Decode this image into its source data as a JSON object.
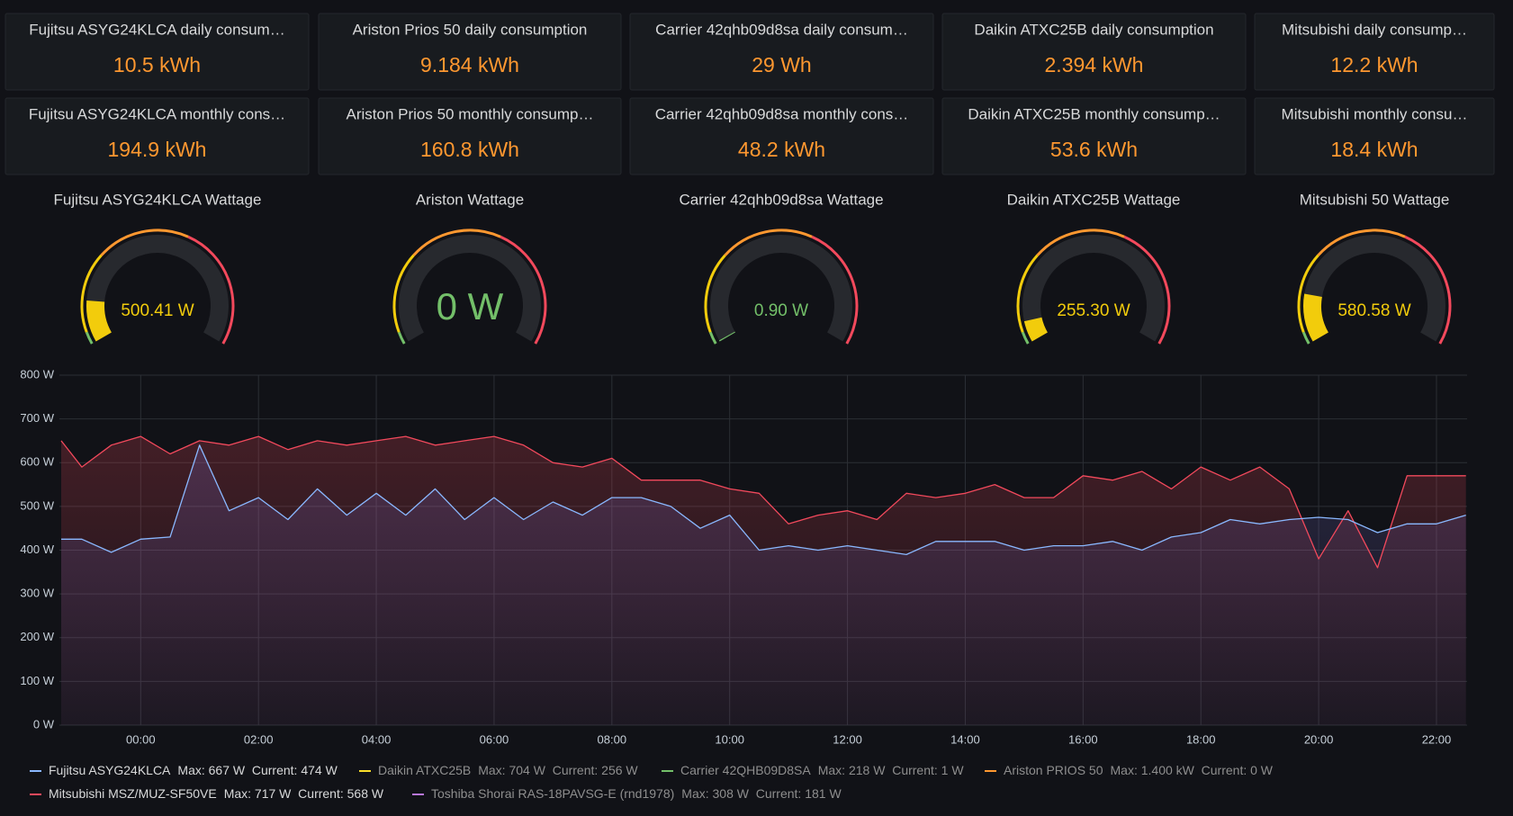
{
  "stats": [
    {
      "title": "Fujitsu ASYG24KLCA daily consum…",
      "value": "10.5 kWh"
    },
    {
      "title": "Ariston Prios 50 daily consumption",
      "value": "9.184 kWh"
    },
    {
      "title": "Carrier 42qhb09d8sa daily consum…",
      "value": "29 Wh"
    },
    {
      "title": "Daikin ATXC25B daily consumption",
      "value": "2.394 kWh"
    },
    {
      "title": "Mitsubishi daily consump…",
      "value": "12.2 kWh"
    },
    {
      "title": "Fujitsu ASYG24KLCA monthly cons…",
      "value": "194.9 kWh"
    },
    {
      "title": "Ariston Prios 50 monthly consump…",
      "value": "160.8 kWh"
    },
    {
      "title": "Carrier 42qhb09d8sa monthly cons…",
      "value": "48.2 kWh"
    },
    {
      "title": "Daikin ATXC25B monthly consump…",
      "value": "53.6 kWh"
    },
    {
      "title": "Mitsubishi monthly consu…",
      "value": "18.4 kWh"
    }
  ],
  "gauges": [
    {
      "title": "Fujitsu ASYG24KLCA Wattage",
      "value": 500.41,
      "value_label": "500.41 W",
      "range": [
        0,
        3500
      ],
      "color": "#f2cc0c"
    },
    {
      "title": "Ariston Wattage",
      "value": 0,
      "value_label": "0 W",
      "range": [
        0,
        3500
      ],
      "color": "#73bf69"
    },
    {
      "title": "Carrier 42qhb09d8sa Wattage",
      "value": 0.9,
      "value_label": "0.90 W",
      "range": [
        0,
        3500
      ],
      "color": "#73bf69"
    },
    {
      "title": "Daikin ATXC25B Wattage",
      "value": 255.3,
      "value_label": "255.30 W",
      "range": [
        0,
        3500
      ],
      "color": "#f2cc0c"
    },
    {
      "title": "Mitsubishi 50 Wattage",
      "value": 580.58,
      "value_label": "580.58 W",
      "range": [
        0,
        3500
      ],
      "color": "#f2cc0c"
    }
  ],
  "chart_data": {
    "type": "line",
    "x": [
      -1.35,
      -1,
      -0.5,
      0,
      0.5,
      1,
      1.5,
      2,
      2.5,
      3,
      3.5,
      4,
      4.5,
      5,
      5.5,
      6,
      6.5,
      7,
      7.5,
      8,
      8.5,
      9,
      9.5,
      10,
      10.5,
      11,
      11.5,
      12,
      12.5,
      13,
      13.5,
      14,
      14.5,
      15,
      15.5,
      16,
      16.5,
      17,
      17.5,
      18,
      18.5,
      19,
      19.5,
      20,
      20.5,
      21,
      21.5,
      22,
      22.5
    ],
    "xlim": [
      -1.38,
      22.52
    ],
    "xticks": [
      {
        "value": 0,
        "label": "00:00"
      },
      {
        "value": 2,
        "label": "02:00"
      },
      {
        "value": 4,
        "label": "04:00"
      },
      {
        "value": 6,
        "label": "06:00"
      },
      {
        "value": 8,
        "label": "08:00"
      },
      {
        "value": 10,
        "label": "10:00"
      },
      {
        "value": 12,
        "label": "12:00"
      },
      {
        "value": 14,
        "label": "14:00"
      },
      {
        "value": 16,
        "label": "16:00"
      },
      {
        "value": 18,
        "label": "18:00"
      },
      {
        "value": 20,
        "label": "20:00"
      },
      {
        "value": 22,
        "label": "22:00"
      }
    ],
    "ylim": [
      0,
      800
    ],
    "yticks": [
      {
        "value": 0,
        "label": "0 W"
      },
      {
        "value": 100,
        "label": "100 W"
      },
      {
        "value": 200,
        "label": "200 W"
      },
      {
        "value": 300,
        "label": "300 W"
      },
      {
        "value": 400,
        "label": "400 W"
      },
      {
        "value": 500,
        "label": "500 W"
      },
      {
        "value": 600,
        "label": "600 W"
      },
      {
        "value": 700,
        "label": "700 W"
      },
      {
        "value": 800,
        "label": "800 W"
      }
    ],
    "grid": true,
    "series": [
      {
        "name": "Fujitsu ASYG24KLCA",
        "stats": "Max: 667 W  Current: 474 W",
        "color": "#8ab8ff",
        "fill": "#7a6fd0",
        "hidden": false,
        "values": [
          425,
          425,
          395,
          425,
          430,
          640,
          490,
          520,
          470,
          540,
          480,
          530,
          480,
          540,
          470,
          520,
          470,
          510,
          480,
          520,
          520,
          500,
          450,
          480,
          400,
          410,
          400,
          410,
          400,
          390,
          420,
          420,
          420,
          400,
          410,
          410,
          420,
          400,
          430,
          440,
          470,
          460,
          470,
          475,
          470,
          440,
          460,
          460,
          480
        ]
      },
      {
        "name": "Daikin ATXC25B",
        "stats": "Max: 704 W  Current: 256 W",
        "color": "#fade2a",
        "hidden": true
      },
      {
        "name": "Carrier 42QHB09D8SA",
        "stats": "Max: 218 W  Current: 1 W",
        "color": "#73bf69",
        "hidden": true
      },
      {
        "name": "Ariston PRIOS 50",
        "stats": "Max: 1.400 kW  Current: 0 W",
        "color": "#ff9830",
        "hidden": true
      },
      {
        "name": "Mitsubishi MSZ/MUZ-SF50VE",
        "stats": "Max: 717 W  Current: 568 W",
        "color": "#f2495c",
        "fill": "#f2495c",
        "hidden": false,
        "values": [
          650,
          590,
          640,
          660,
          620,
          650,
          640,
          660,
          630,
          650,
          640,
          650,
          660,
          640,
          650,
          660,
          640,
          600,
          590,
          610,
          560,
          560,
          560,
          540,
          530,
          460,
          480,
          490,
          470,
          530,
          520,
          530,
          550,
          520,
          520,
          570,
          560,
          580,
          540,
          590,
          560,
          590,
          540,
          380,
          490,
          360,
          570,
          570,
          570
        ]
      },
      {
        "name": "Toshiba Shorai RAS-18PAVSG-E (rnd1978)",
        "stats": "Max: 308 W  Current: 181 W",
        "color": "#b877d9",
        "hidden": true
      }
    ]
  }
}
